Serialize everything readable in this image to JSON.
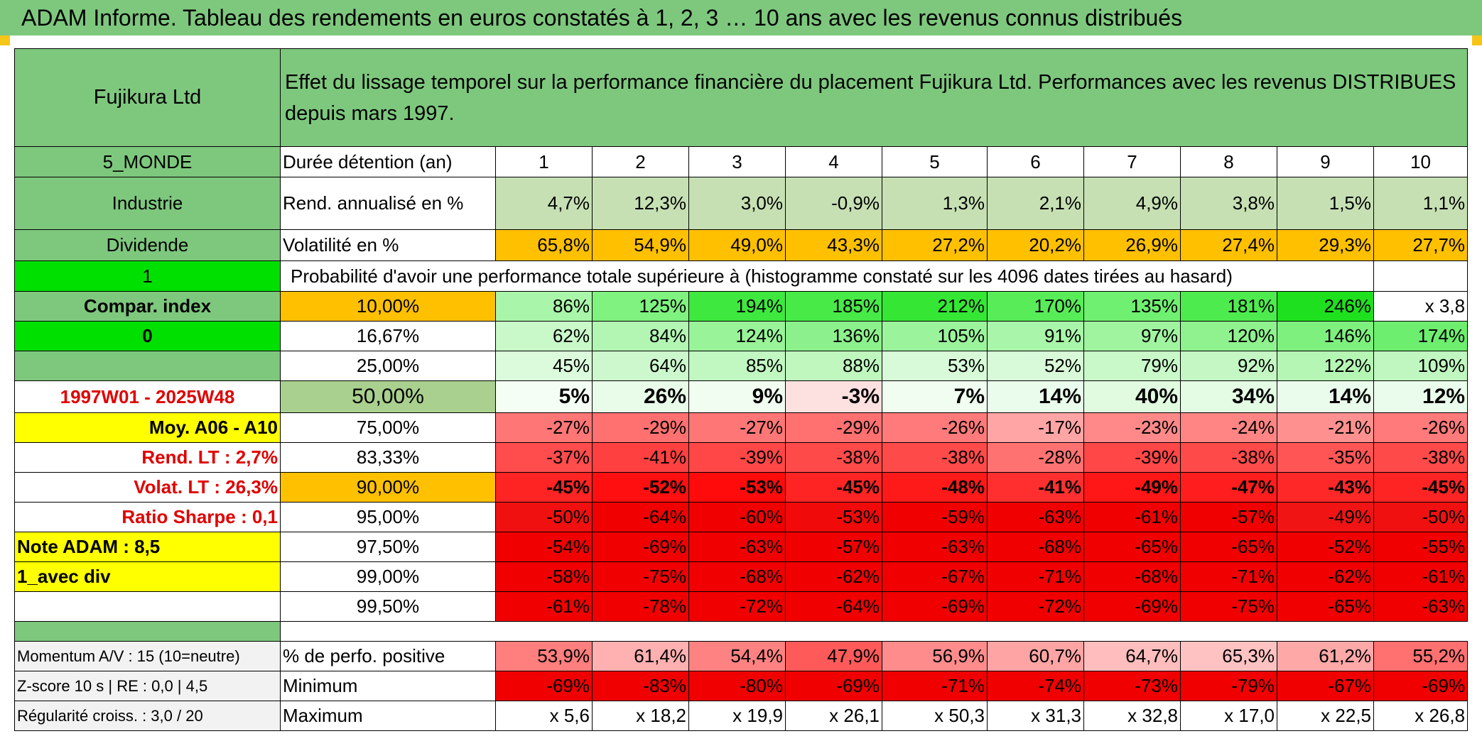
{
  "title": "ADAM Informe. Tableau des rendements en euros constatés à 1, 2, 3 … 10 ans avec les revenus connus distribués",
  "header": {
    "name": "Fujikura Ltd",
    "description": "Effet du lissage temporel sur la performance financière du placement Fujikura Ltd. Performances avec les revenus DISTRIBUES depuis mars 1997."
  },
  "left_labels": {
    "region": "5_MONDE",
    "sector": "Industrie",
    "dividend": "Dividende",
    "flag1": "1",
    "compar_index": "Compar. index",
    "flag0": "0",
    "period": "1997W01 - 2025W48",
    "moy": "Moy. A06 - A10",
    "rend_lt": "Rend. LT :   2,7%",
    "volat_lt": "Volat. LT :   26,3%",
    "sharpe": "Ratio Sharpe :    0,1",
    "note": "Note ADAM : 8,5",
    "avec_div": "1_avec div"
  },
  "row_labels": {
    "duree": "Durée détention (an)",
    "rend": "Rend. annualisé en %",
    "vol": "Volatilité en %",
    "proba": "Probabilité d'avoir une performance totale supérieure à (histogramme constaté sur les 4096 dates tirées au hasard)"
  },
  "years": [
    "1",
    "2",
    "3",
    "4",
    "5",
    "6",
    "7",
    "8",
    "9",
    "10"
  ],
  "rend": [
    "4,7%",
    "12,3%",
    "3,0%",
    "-0,9%",
    "1,3%",
    "2,1%",
    "4,9%",
    "3,8%",
    "1,5%",
    "1,1%"
  ],
  "vol": [
    "65,8%",
    "54,9%",
    "49,0%",
    "43,3%",
    "27,2%",
    "20,2%",
    "26,9%",
    "27,4%",
    "29,3%",
    "27,7%"
  ],
  "percentiles": [
    {
      "p": "10,00%",
      "values": [
        "86%",
        "125%",
        "194%",
        "185%",
        "212%",
        "170%",
        "135%",
        "181%",
        "246%",
        "x 3,8"
      ]
    },
    {
      "p": "16,67%",
      "values": [
        "62%",
        "84%",
        "124%",
        "136%",
        "105%",
        "91%",
        "97%",
        "120%",
        "146%",
        "174%"
      ]
    },
    {
      "p": "25,00%",
      "values": [
        "45%",
        "64%",
        "85%",
        "88%",
        "53%",
        "52%",
        "79%",
        "92%",
        "122%",
        "109%"
      ]
    },
    {
      "p": "50,00%",
      "values": [
        "5%",
        "26%",
        "9%",
        "-3%",
        "7%",
        "14%",
        "40%",
        "34%",
        "14%",
        "12%"
      ]
    },
    {
      "p": "75,00%",
      "values": [
        "-27%",
        "-29%",
        "-27%",
        "-29%",
        "-26%",
        "-17%",
        "-23%",
        "-24%",
        "-21%",
        "-26%"
      ]
    },
    {
      "p": "83,33%",
      "values": [
        "-37%",
        "-41%",
        "-39%",
        "-38%",
        "-38%",
        "-28%",
        "-39%",
        "-38%",
        "-35%",
        "-38%"
      ]
    },
    {
      "p": "90,00%",
      "values": [
        "-45%",
        "-52%",
        "-53%",
        "-45%",
        "-48%",
        "-41%",
        "-49%",
        "-47%",
        "-43%",
        "-45%"
      ]
    },
    {
      "p": "95,00%",
      "values": [
        "-50%",
        "-64%",
        "-60%",
        "-53%",
        "-59%",
        "-63%",
        "-61%",
        "-57%",
        "-49%",
        "-50%"
      ]
    },
    {
      "p": "97,50%",
      "values": [
        "-54%",
        "-69%",
        "-63%",
        "-57%",
        "-63%",
        "-68%",
        "-65%",
        "-65%",
        "-52%",
        "-55%"
      ]
    },
    {
      "p": "99,00%",
      "values": [
        "-58%",
        "-75%",
        "-68%",
        "-62%",
        "-67%",
        "-71%",
        "-68%",
        "-71%",
        "-62%",
        "-61%"
      ]
    },
    {
      "p": "99,50%",
      "values": [
        "-61%",
        "-78%",
        "-72%",
        "-64%",
        "-69%",
        "-72%",
        "-69%",
        "-75%",
        "-65%",
        "-63%"
      ]
    }
  ],
  "bottom": [
    {
      "left": "Momentum A/V : 15 (10=neutre)",
      "label": "% de perfo. positive",
      "values": [
        "53,9%",
        "61,4%",
        "54,4%",
        "47,9%",
        "56,9%",
        "60,7%",
        "64,7%",
        "65,3%",
        "61,2%",
        "55,2%"
      ]
    },
    {
      "left": "Z-score 10 s | RE : 0,0 | 4,5",
      "label": "Minimum",
      "values": [
        "-69%",
        "-83%",
        "-80%",
        "-69%",
        "-71%",
        "-74%",
        "-73%",
        "-79%",
        "-67%",
        "-69%"
      ]
    },
    {
      "left": "Régularité croiss. : 3,0 / 20",
      "label": "Maximum",
      "values": [
        "x 5,6",
        "x 18,2",
        "x 19,9",
        "x 26,1",
        "x 50,3",
        "x 31,3",
        "x 32,8",
        "x 17,0",
        "x 22,5",
        "x 26,8"
      ]
    }
  ],
  "colors": {
    "header_green": "#7ec87e",
    "bright_green": "#00e000",
    "orange": "#ffc000",
    "yellow": "#ffff00",
    "label_red": "#e00000"
  },
  "cell_colors": {
    "rend": [
      "#c6e0b4",
      "#c6e0b4",
      "#c6e0b4",
      "#c6e0b4",
      "#c6e0b4",
      "#c6e0b4",
      "#c6e0b4",
      "#c6e0b4",
      "#c6e0b4",
      "#c6e0b4"
    ],
    "vol": [
      "#ffc000",
      "#ffc000",
      "#ffc000",
      "#ffc000",
      "#ffc000",
      "#ffc000",
      "#ffc000",
      "#ffc000",
      "#ffc000",
      "#ffc000"
    ],
    "percentiles": [
      [
        "#a9f5a9",
        "#7ff27f",
        "#3ee83e",
        "#47ea47",
        "#35e635",
        "#58ec58",
        "#70f070",
        "#4eeb4e",
        "#1ee01e",
        "#ffffff"
      ],
      [
        "#c9f8c9",
        "#b3f6b3",
        "#99f399",
        "#8cf18c",
        "#9bf39b",
        "#a9f5a9",
        "#a0f4a0",
        "#8ff28f",
        "#7ef07e",
        "#6eee6e"
      ],
      [
        "#dcfadc",
        "#cdf8cd",
        "#c1f7c1",
        "#bff7bf",
        "#d8fad8",
        "#d8fad8",
        "#c9f8c9",
        "#c4f7c4",
        "#b5f6b5",
        "#c0f7c0"
      ],
      [
        "#f5fef5",
        "#e9fce9",
        "#f1fdf1",
        "#fde0e0",
        "#f0fdf0",
        "#eafceb",
        "#e1fbe1",
        "#e4fbe4",
        "#eafceb",
        "#eafceb"
      ],
      [
        "#ff7676",
        "#ff7070",
        "#ff7676",
        "#ff7070",
        "#ff7a7a",
        "#ffa5a5",
        "#ff8989",
        "#ff8585",
        "#ff9090",
        "#ff7a7a"
      ],
      [
        "#ff4c4c",
        "#ff4040",
        "#ff4747",
        "#ff4a4a",
        "#ff4a4a",
        "#ff7272",
        "#ff4747",
        "#ff4a4a",
        "#ff5555",
        "#ff4a4a"
      ],
      [
        "#ff2424",
        "#ff0f0f",
        "#ff0b0b",
        "#ff2424",
        "#ff1a1a",
        "#ff2f2f",
        "#ff1717",
        "#ff1d1d",
        "#ff2828",
        "#ff2424"
      ],
      [
        "#f01010",
        "#f00000",
        "#f00000",
        "#f00a0a",
        "#f00000",
        "#f00000",
        "#f00000",
        "#f00000",
        "#f01414",
        "#f01010"
      ],
      [
        "#f00000",
        "#f00000",
        "#f00000",
        "#f00000",
        "#f00000",
        "#f00000",
        "#f00000",
        "#f00000",
        "#f00000",
        "#f00000"
      ],
      [
        "#f00000",
        "#f00000",
        "#f00000",
        "#f00000",
        "#f00000",
        "#f00000",
        "#f00000",
        "#f00000",
        "#f00000",
        "#f00000"
      ],
      [
        "#f00000",
        "#f00000",
        "#f00000",
        "#f00000",
        "#f00000",
        "#f00000",
        "#f00000",
        "#f00000",
        "#f00000",
        "#f00000"
      ]
    ],
    "bottom": [
      [
        "#ff7e7e",
        "#ffb0b0",
        "#ff8282",
        "#ff5a5a",
        "#ff8c8c",
        "#ffa4a4",
        "#ffbdbd",
        "#ffc2c2",
        "#ffa8a8",
        "#ff7070"
      ],
      [
        "#f00000",
        "#f00000",
        "#f00000",
        "#f00000",
        "#f00000",
        "#f00000",
        "#f00000",
        "#f00000",
        "#f00000",
        "#f00000"
      ],
      [
        "#ffffff",
        "#ffffff",
        "#ffffff",
        "#ffffff",
        "#ffffff",
        "#ffffff",
        "#ffffff",
        "#ffffff",
        "#ffffff",
        "#ffffff"
      ]
    ]
  }
}
